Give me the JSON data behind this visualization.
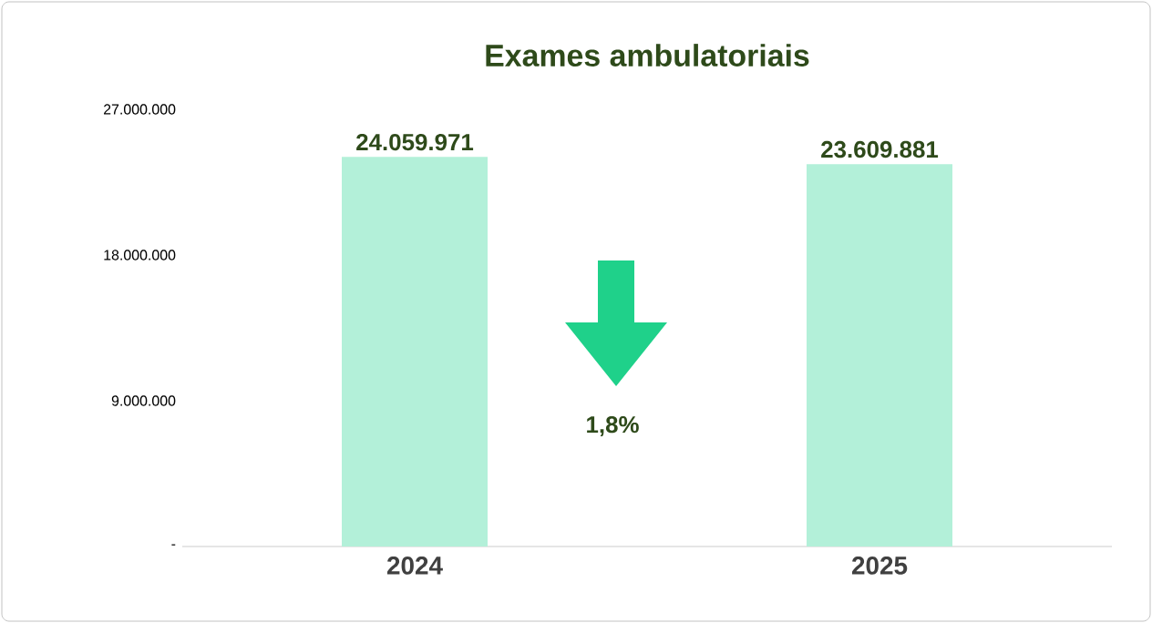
{
  "chart_data": {
    "type": "bar",
    "title": "Exames ambulatoriais",
    "categories": [
      "2024",
      "2025"
    ],
    "values": [
      24059971,
      23609881
    ],
    "value_labels": [
      "24.059.971",
      "23.609.881"
    ],
    "color": "#b3f0d9",
    "ylim": [
      0,
      27000000
    ],
    "yticks": [
      {
        "value": 0,
        "label": "-"
      },
      {
        "value": 9000000,
        "label": "9.000.000"
      },
      {
        "value": 18000000,
        "label": "18.000.000"
      },
      {
        "value": 27000000,
        "label": "27.000.000"
      }
    ],
    "annotations": [
      "1,8%"
    ]
  }
}
